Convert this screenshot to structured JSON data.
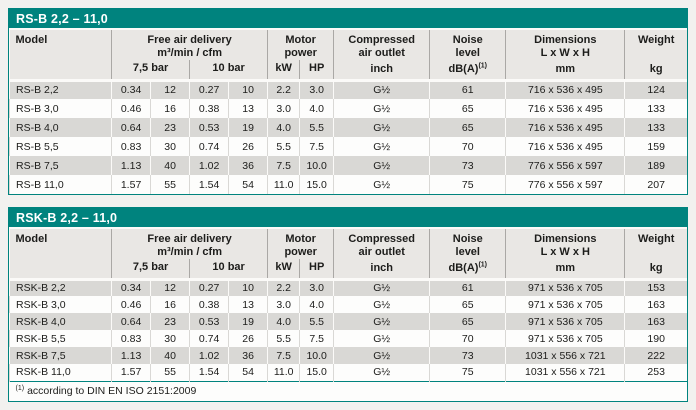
{
  "colors": {
    "accent_teal": "#00837E",
    "header_bg": "#E9E7E4",
    "row_alt": "#D9D8D5",
    "page_bg": "#F2F1EF",
    "gap_white": "#FBFAF8",
    "text": "#1D1D1B"
  },
  "columns": {
    "model": "Model",
    "fad": {
      "title": "Free air delivery",
      "unit": "m³/min / cfm",
      "sub1": "7,5 bar",
      "sub2": "10 bar"
    },
    "motor": {
      "line1": "Motor",
      "line2": "power",
      "sub1": "kW",
      "sub2": "HP"
    },
    "outlet": {
      "line1": "Compressed",
      "line2": "air outlet",
      "unit": "inch"
    },
    "noise": {
      "line1": "Noise",
      "line2": "level",
      "unit": "dB(A)",
      "unit_sup": "(1)"
    },
    "dimensions": {
      "line1": "Dimensions",
      "line2": "L x W x H",
      "unit": "mm"
    },
    "weight": {
      "title": "Weight",
      "unit": "kg"
    }
  },
  "tables": [
    {
      "title": "RS-B 2,2 – 11,0",
      "rows": [
        {
          "cells": [
            "RS-B 2,2",
            "0.34",
            "12",
            "0.27",
            "10",
            "2.2",
            "3.0",
            "G½",
            "61",
            "716 x 536 x 495",
            "124"
          ]
        },
        {
          "cells": [
            "RS-B 3,0",
            "0.46",
            "16",
            "0.38",
            "13",
            "3.0",
            "4.0",
            "G½",
            "65",
            "716 x 536 x 495",
            "133"
          ]
        },
        {
          "cells": [
            "RS-B 4,0",
            "0.64",
            "23",
            "0.53",
            "19",
            "4.0",
            "5.5",
            "G½",
            "65",
            "716 x 536 x 495",
            "133"
          ]
        },
        {
          "cells": [
            "RS-B 5,5",
            "0.83",
            "30",
            "0.74",
            "26",
            "5.5",
            "7.5",
            "G½",
            "70",
            "716 x 536 x 495",
            "159"
          ]
        },
        {
          "cells": [
            "RS-B 7,5",
            "1.13",
            "40",
            "1.02",
            "36",
            "7.5",
            "10.0",
            "G½",
            "73",
            "776 x 556 x 597",
            "189"
          ]
        },
        {
          "cells": [
            "RS-B 11,0",
            "1.57",
            "55",
            "1.54",
            "54",
            "11.0",
            "15.0",
            "G½",
            "75",
            "776 x 556 x 597",
            "207"
          ]
        }
      ]
    },
    {
      "title": "RSK-B 2,2 – 11,0",
      "rows": [
        {
          "cells": [
            "RSK-B 2,2",
            "0.34",
            "12",
            "0.27",
            "10",
            "2.2",
            "3.0",
            "G½",
            "61",
            "971 x 536 x 705",
            "153"
          ]
        },
        {
          "cells": [
            "RSK-B 3,0",
            "0.46",
            "16",
            "0.38",
            "13",
            "3.0",
            "4.0",
            "G½",
            "65",
            "971 x 536 x 705",
            "163"
          ]
        },
        {
          "cells": [
            "RSK-B 4,0",
            "0.64",
            "23",
            "0.53",
            "19",
            "4.0",
            "5.5",
            "G½",
            "65",
            "971 x 536 x 705",
            "163"
          ]
        },
        {
          "cells": [
            "RSK-B 5,5",
            "0.83",
            "30",
            "0.74",
            "26",
            "5.5",
            "7.5",
            "G½",
            "70",
            "971 x 536 x 705",
            "190"
          ]
        },
        {
          "cells": [
            "RSK-B 7,5",
            "1.13",
            "40",
            "1.02",
            "36",
            "7.5",
            "10.0",
            "G½",
            "73",
            "1031 x 556 x 721",
            "222"
          ]
        },
        {
          "cells": [
            "RSK-B 11,0",
            "1.57",
            "55",
            "1.54",
            "54",
            "11.0",
            "15.0",
            "G½",
            "75",
            "1031 x 556 x 721",
            "253"
          ]
        }
      ],
      "footnote": {
        "sup": "(1)",
        "text": "according to DIN EN ISO 2151:2009"
      }
    }
  ]
}
